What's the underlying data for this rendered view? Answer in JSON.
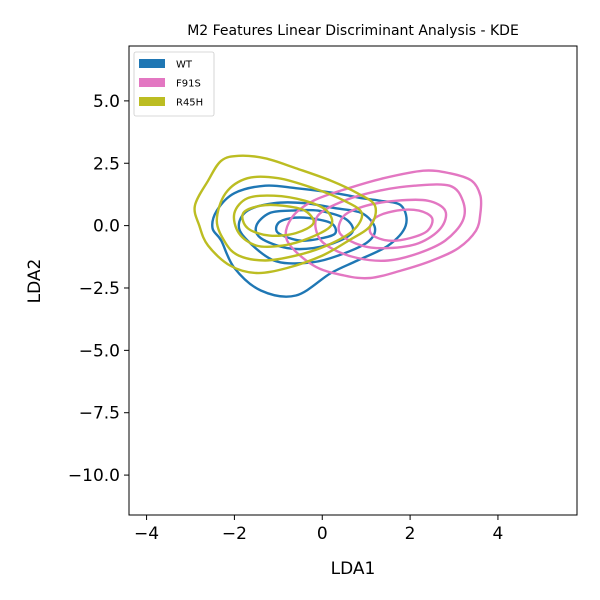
{
  "chart_data": {
    "type": "contour",
    "title": "M2 Features Linear Discriminant Analysis - KDE",
    "xlabel": "LDA1",
    "ylabel": "LDA2",
    "xlim": [
      -4.4,
      5.8
    ],
    "ylim": [
      -11.6,
      7.2
    ],
    "xticks": [
      -4,
      -2,
      0,
      2,
      4
    ],
    "xtick_labels": [
      "−4",
      "−2",
      "0",
      "2",
      "4"
    ],
    "yticks": [
      5.0,
      2.5,
      0.0,
      -2.5,
      -5.0,
      -7.5,
      -10.0
    ],
    "ytick_labels": [
      "5.0",
      "2.5",
      "0.0",
      "−2.5",
      "−5.0",
      "−7.5",
      "−10.0"
    ],
    "grid": false,
    "legend_position": "top-left",
    "series": [
      {
        "name": "WT",
        "color": "#1f77b4",
        "contours": [
          [
            [
              -2.3,
              -0.6
            ],
            [
              -2.5,
              -0.1
            ],
            [
              -2.4,
              0.6
            ],
            [
              -2.0,
              1.3
            ],
            [
              -1.3,
              1.6
            ],
            [
              -0.6,
              1.5
            ],
            [
              0.3,
              1.3
            ],
            [
              0.9,
              1.1
            ],
            [
              1.3,
              1.0
            ],
            [
              1.8,
              0.8
            ],
            [
              1.9,
              0.0
            ],
            [
              1.5,
              -0.8
            ],
            [
              0.8,
              -1.4
            ],
            [
              0.2,
              -1.9
            ],
            [
              -0.6,
              -2.8
            ],
            [
              -1.4,
              -2.6
            ],
            [
              -2.0,
              -1.7
            ]
          ],
          [
            [
              -1.7,
              -0.6
            ],
            [
              -1.9,
              0.0
            ],
            [
              -1.7,
              0.6
            ],
            [
              -1.1,
              0.9
            ],
            [
              -0.4,
              0.9
            ],
            [
              0.3,
              0.7
            ],
            [
              0.9,
              0.5
            ],
            [
              1.2,
              -0.1
            ],
            [
              1.0,
              -0.7
            ],
            [
              0.2,
              -1.3
            ],
            [
              -0.4,
              -1.5
            ],
            [
              -1.1,
              -1.4
            ]
          ],
          [
            [
              -1.4,
              -0.5
            ],
            [
              -1.5,
              0.0
            ],
            [
              -1.2,
              0.5
            ],
            [
              -0.7,
              0.6
            ],
            [
              -0.1,
              0.6
            ],
            [
              0.5,
              0.3
            ],
            [
              0.7,
              -0.2
            ],
            [
              0.4,
              -0.6
            ],
            [
              -0.2,
              -0.9
            ],
            [
              -0.8,
              -0.9
            ]
          ],
          [
            [
              -1.0,
              -0.3
            ],
            [
              -1.0,
              0.1
            ],
            [
              -0.7,
              0.3
            ],
            [
              -0.3,
              0.3
            ],
            [
              0.2,
              0.1
            ],
            [
              0.3,
              -0.3
            ],
            [
              0.0,
              -0.5
            ],
            [
              -0.5,
              -0.6
            ]
          ]
        ]
      },
      {
        "name": "F91S",
        "color": "#e377c2",
        "contours": [
          [
            [
              -0.8,
              -0.6
            ],
            [
              -0.7,
              0.3
            ],
            [
              -0.2,
              1.0
            ],
            [
              0.6,
              1.5
            ],
            [
              1.4,
              1.9
            ],
            [
              2.3,
              2.2
            ],
            [
              2.9,
              2.1
            ],
            [
              3.4,
              1.8
            ],
            [
              3.6,
              1.2
            ],
            [
              3.6,
              0.5
            ],
            [
              3.5,
              -0.2
            ],
            [
              3.1,
              -0.9
            ],
            [
              2.5,
              -1.4
            ],
            [
              1.8,
              -1.8
            ],
            [
              1.1,
              -2.1
            ],
            [
              0.5,
              -2.0
            ],
            [
              -0.2,
              -1.6
            ]
          ],
          [
            [
              -0.1,
              -0.4
            ],
            [
              -0.1,
              0.4
            ],
            [
              0.5,
              1.0
            ],
            [
              1.3,
              1.4
            ],
            [
              2.1,
              1.6
            ],
            [
              2.9,
              1.6
            ],
            [
              3.2,
              1.0
            ],
            [
              3.2,
              0.2
            ],
            [
              2.8,
              -0.6
            ],
            [
              2.2,
              -1.1
            ],
            [
              1.5,
              -1.4
            ],
            [
              0.8,
              -1.3
            ],
            [
              0.2,
              -0.9
            ]
          ],
          [
            [
              0.4,
              -0.3
            ],
            [
              0.5,
              0.4
            ],
            [
              1.0,
              0.8
            ],
            [
              1.7,
              1.0
            ],
            [
              2.4,
              1.0
            ],
            [
              2.8,
              0.6
            ],
            [
              2.7,
              -0.1
            ],
            [
              2.2,
              -0.7
            ],
            [
              1.5,
              -0.9
            ],
            [
              0.9,
              -0.8
            ]
          ],
          [
            [
              1.1,
              -0.3
            ],
            [
              1.2,
              0.3
            ],
            [
              1.7,
              0.6
            ],
            [
              2.2,
              0.6
            ],
            [
              2.5,
              0.3
            ],
            [
              2.4,
              -0.2
            ],
            [
              2.0,
              -0.5
            ],
            [
              1.5,
              -0.6
            ]
          ]
        ]
      },
      {
        "name": "R45H",
        "color": "#bcbd22",
        "contours": [
          [
            [
              -2.6,
              -0.8
            ],
            [
              -2.8,
              0.0
            ],
            [
              -2.9,
              0.8
            ],
            [
              -2.6,
              1.8
            ],
            [
              -2.3,
              2.6
            ],
            [
              -1.9,
              2.8
            ],
            [
              -1.3,
              2.7
            ],
            [
              -0.6,
              2.3
            ],
            [
              0.2,
              1.8
            ],
            [
              0.8,
              1.3
            ],
            [
              1.2,
              0.8
            ],
            [
              1.1,
              0.0
            ],
            [
              0.6,
              -0.6
            ],
            [
              0.0,
              -1.2
            ],
            [
              -0.8,
              -1.7
            ],
            [
              -1.5,
              -1.9
            ],
            [
              -2.1,
              -1.6
            ]
          ],
          [
            [
              -2.2,
              -0.7
            ],
            [
              -2.4,
              0.2
            ],
            [
              -2.2,
              1.3
            ],
            [
              -1.7,
              1.9
            ],
            [
              -1.0,
              1.9
            ],
            [
              -0.2,
              1.5
            ],
            [
              0.5,
              1.0
            ],
            [
              0.9,
              0.5
            ],
            [
              0.7,
              -0.2
            ],
            [
              0.1,
              -0.8
            ],
            [
              -0.6,
              -1.2
            ],
            [
              -1.3,
              -1.4
            ],
            [
              -1.9,
              -1.2
            ]
          ],
          [
            [
              -1.9,
              -0.3
            ],
            [
              -2.0,
              0.5
            ],
            [
              -1.7,
              1.1
            ],
            [
              -1.1,
              1.2
            ],
            [
              -0.4,
              1.0
            ],
            [
              0.1,
              0.6
            ],
            [
              0.2,
              0.0
            ],
            [
              -0.3,
              -0.5
            ],
            [
              -0.9,
              -0.8
            ],
            [
              -1.5,
              -0.8
            ]
          ],
          [
            [
              -1.7,
              -0.1
            ],
            [
              -1.8,
              0.5
            ],
            [
              -1.4,
              0.8
            ],
            [
              -0.9,
              0.8
            ],
            [
              -0.4,
              0.6
            ],
            [
              -0.2,
              0.1
            ],
            [
              -0.6,
              -0.3
            ],
            [
              -1.2,
              -0.4
            ]
          ]
        ]
      }
    ]
  }
}
